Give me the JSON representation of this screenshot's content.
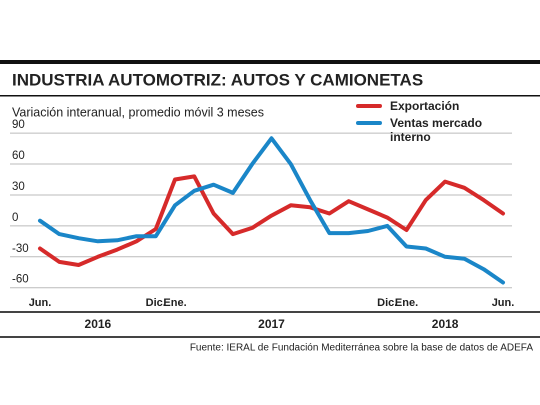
{
  "chart_data": {
    "type": "line",
    "title": "INDUSTRIA AUTOMOTRIZ: AUTOS Y CAMIONETAS",
    "subtitle": "Variación interanual, promedio móvil 3 meses",
    "categories": [
      "Jun.",
      null,
      null,
      null,
      null,
      null,
      "Dic.",
      "Ene.",
      null,
      null,
      null,
      null,
      null,
      null,
      null,
      null,
      null,
      null,
      "Dic.",
      "Ene.",
      null,
      null,
      null,
      null,
      "Jun."
    ],
    "year_labels": [
      "2016",
      "2017",
      "2018"
    ],
    "series": [
      {
        "name": "Exportación",
        "color": "#d62a2a",
        "values": [
          -22,
          -35,
          -38,
          -30,
          -23,
          -15,
          -3,
          45,
          48,
          12,
          -8,
          -2,
          10,
          20,
          18,
          12,
          24,
          16,
          8,
          -4,
          25,
          43,
          37,
          25,
          12
        ]
      },
      {
        "name": "Ventas mercado interno",
        "color": "#1a86c8",
        "values": [
          5,
          -8,
          -12,
          -15,
          -14,
          -10,
          -10,
          20,
          34,
          40,
          32,
          60,
          85,
          60,
          25,
          -7,
          -7,
          -5,
          0,
          -20,
          -22,
          -30,
          -32,
          -42,
          -55
        ]
      }
    ],
    "ylim": [
      -70,
      95
    ],
    "yticks": [
      90,
      60,
      30,
      0,
      -30,
      -60
    ],
    "grid": true,
    "source": "Fuente: IERAL de Fundación Mediterránea sobre la base de datos de ADEFA"
  }
}
